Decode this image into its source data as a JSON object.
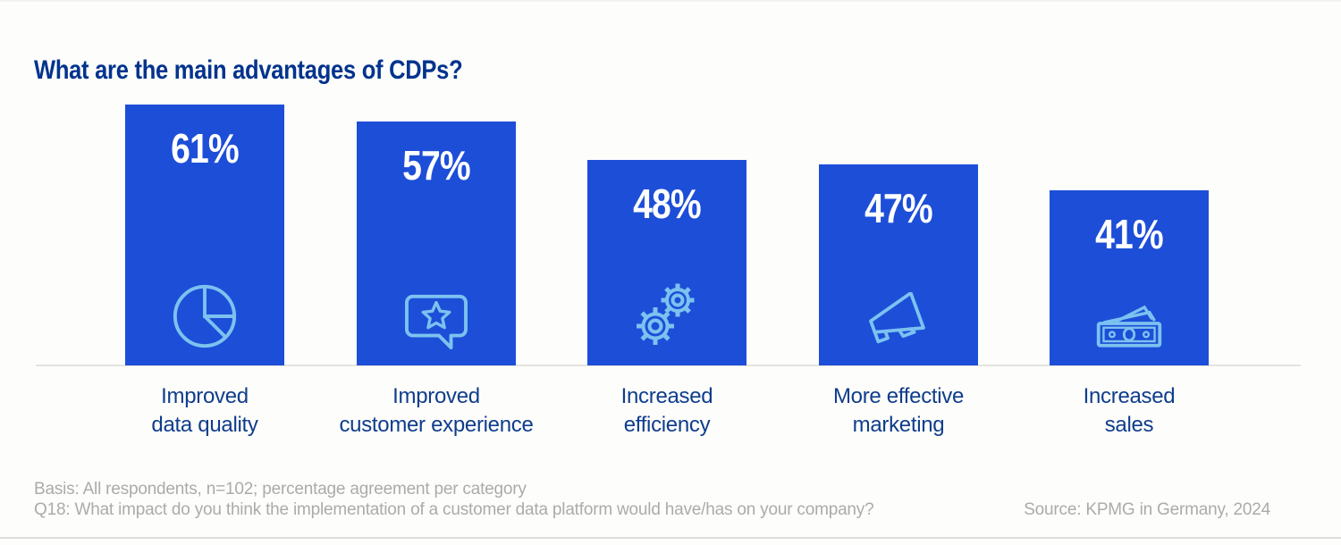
{
  "page": {
    "title": "What are the main advantages of CDPs?"
  },
  "chart_data": {
    "type": "bar",
    "title": "What are the main advantages of CDPs?",
    "unit": "%",
    "ylim": [
      0,
      100
    ],
    "grid": false,
    "legend": false,
    "categories": [
      "Improved data quality",
      "Improved customer experience",
      "Increased efficiency",
      "More effective marketing",
      "Increased sales"
    ],
    "category_label_lines": [
      [
        "Improved",
        "data quality"
      ],
      [
        "Improved",
        "customer experience"
      ],
      [
        "Increased",
        "efficiency"
      ],
      [
        "More effective",
        "marketing"
      ],
      [
        "Increased",
        "sales"
      ]
    ],
    "values": [
      61,
      57,
      48,
      47,
      41
    ],
    "value_labels": [
      "61%",
      "57%",
      "48%",
      "47%",
      "41%"
    ],
    "icons": [
      "pie-chart-icon",
      "feedback-speech-bubble-icon",
      "gears-icon",
      "megaphone-icon",
      "banknotes-icon"
    ],
    "colors": {
      "bar": "#1d4ed8",
      "value_label": "#ffffff",
      "icon": "#7cc2f0",
      "category_label": "#0f3d8c",
      "title": "#00338d",
      "baseline": "#e3e3e0",
      "footnote": "#ababab"
    }
  },
  "footer": {
    "basis": "Basis: All respondents, n=102; percentage agreement per category",
    "question": "Q18: What impact do you think the implementation of a customer data platform would have/has on your company?",
    "source": "Source: KPMG in Germany, 2024"
  }
}
